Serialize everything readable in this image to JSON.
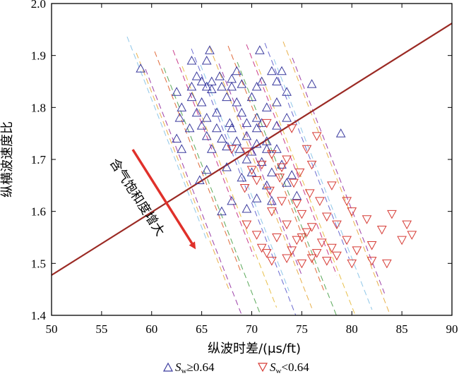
{
  "chart_data": {
    "type": "scatter",
    "xlabel": "纵波时差/(μs/ft)",
    "ylabel": "纵横波速度比",
    "xlim": [
      50,
      90
    ],
    "ylim": [
      1.4,
      2.0
    ],
    "x_ticks": [
      "50",
      "55",
      "60",
      "65",
      "70",
      "75",
      "80",
      "85",
      "90"
    ],
    "y_ticks": [
      "1.4",
      "1.5",
      "1.6",
      "1.7",
      "1.8",
      "1.9",
      "2.0"
    ],
    "grid": false,
    "legend_position": "bottom",
    "annotation": "含气饱和度增大",
    "series": [
      {
        "name": "Sw≥0.64",
        "legend_main": "S",
        "legend_sub": "w",
        "legend_rest": "≥0.64",
        "marker": "triangle-up",
        "color": "#3b3b9e",
        "points": [
          [
            58.9,
            1.875
          ],
          [
            70.8,
            1.91
          ],
          [
            65.8,
            1.91
          ],
          [
            64.0,
            1.89
          ],
          [
            65.5,
            1.89
          ],
          [
            68.5,
            1.87
          ],
          [
            72.0,
            1.87
          ],
          [
            73.0,
            1.87
          ],
          [
            64.5,
            1.86
          ],
          [
            66.8,
            1.86
          ],
          [
            68.0,
            1.855
          ],
          [
            65.0,
            1.85
          ],
          [
            66.0,
            1.85
          ],
          [
            71.0,
            1.85
          ],
          [
            72.5,
            1.85
          ],
          [
            76.0,
            1.845
          ],
          [
            62.5,
            1.83
          ],
          [
            64.0,
            1.84
          ],
          [
            65.5,
            1.84
          ],
          [
            67.0,
            1.84
          ],
          [
            68.0,
            1.84
          ],
          [
            69.0,
            1.845
          ],
          [
            70.5,
            1.84
          ],
          [
            66.0,
            1.835
          ],
          [
            73.5,
            1.83
          ],
          [
            63.0,
            1.8
          ],
          [
            64.0,
            1.82
          ],
          [
            65.0,
            1.81
          ],
          [
            67.5,
            1.82
          ],
          [
            68.5,
            1.81
          ],
          [
            70.0,
            1.82
          ],
          [
            71.5,
            1.8
          ],
          [
            72.5,
            1.81
          ],
          [
            62.8,
            1.78
          ],
          [
            64.5,
            1.79
          ],
          [
            65.5,
            1.78
          ],
          [
            66.5,
            1.79
          ],
          [
            67.8,
            1.77
          ],
          [
            69.0,
            1.79
          ],
          [
            70.5,
            1.78
          ],
          [
            71.0,
            1.77
          ],
          [
            73.5,
            1.78
          ],
          [
            63.8,
            1.76
          ],
          [
            65.0,
            1.765
          ],
          [
            66.5,
            1.76
          ],
          [
            68.0,
            1.76
          ],
          [
            69.5,
            1.77
          ],
          [
            70.5,
            1.76
          ],
          [
            72.5,
            1.765
          ],
          [
            78.9,
            1.75
          ],
          [
            62.5,
            1.74
          ],
          [
            65.5,
            1.745
          ],
          [
            67.0,
            1.74
          ],
          [
            68.5,
            1.735
          ],
          [
            69.5,
            1.745
          ],
          [
            70.5,
            1.73
          ],
          [
            71.5,
            1.735
          ],
          [
            63.0,
            1.72
          ],
          [
            66.0,
            1.72
          ],
          [
            67.5,
            1.725
          ],
          [
            68.8,
            1.72
          ],
          [
            70.0,
            1.715
          ],
          [
            71.5,
            1.72
          ],
          [
            72.5,
            1.72
          ],
          [
            69.5,
            1.7
          ],
          [
            71.0,
            1.695
          ],
          [
            73.0,
            1.69
          ],
          [
            65.5,
            1.68
          ],
          [
            67.5,
            1.685
          ],
          [
            70.0,
            1.675
          ],
          [
            72.0,
            1.675
          ],
          [
            74.0,
            1.67
          ],
          [
            64.8,
            1.66
          ],
          [
            69.0,
            1.665
          ],
          [
            71.5,
            1.65
          ],
          [
            73.5,
            1.655
          ],
          [
            68.0,
            1.62
          ],
          [
            70.5,
            1.625
          ],
          [
            72.0,
            1.62
          ],
          [
            74.5,
            1.63
          ],
          [
            67.0,
            1.6
          ],
          [
            69.5,
            1.605
          ]
        ]
      },
      {
        "name": "Sw<0.64",
        "legend_main": "S",
        "legend_sub": "w",
        "legend_rest": "<0.64",
        "marker": "triangle-down",
        "color": "#d63a34",
        "points": [
          [
            71.5,
            1.77
          ],
          [
            74.0,
            1.76
          ],
          [
            76.5,
            1.745
          ],
          [
            75.5,
            1.72
          ],
          [
            68.0,
            1.72
          ],
          [
            69.5,
            1.715
          ],
          [
            72.0,
            1.71
          ],
          [
            73.5,
            1.7
          ],
          [
            71.0,
            1.69
          ],
          [
            70.0,
            1.68
          ],
          [
            73.0,
            1.685
          ],
          [
            74.8,
            1.675
          ],
          [
            76.0,
            1.69
          ],
          [
            72.8,
            1.665
          ],
          [
            74.2,
            1.655
          ],
          [
            70.5,
            1.66
          ],
          [
            69.3,
            1.645
          ],
          [
            71.8,
            1.64
          ],
          [
            75.8,
            1.635
          ],
          [
            78.0,
            1.65
          ],
          [
            73.0,
            1.62
          ],
          [
            74.5,
            1.615
          ],
          [
            76.8,
            1.62
          ],
          [
            79.5,
            1.62
          ],
          [
            72.0,
            1.6
          ],
          [
            75.0,
            1.595
          ],
          [
            77.5,
            1.59
          ],
          [
            80.0,
            1.6
          ],
          [
            81.5,
            1.585
          ],
          [
            69.5,
            1.575
          ],
          [
            73.5,
            1.575
          ],
          [
            76.0,
            1.57
          ],
          [
            78.5,
            1.575
          ],
          [
            84.0,
            1.595
          ],
          [
            85.5,
            1.575
          ],
          [
            86.0,
            1.555
          ],
          [
            83.0,
            1.565
          ],
          [
            70.5,
            1.555
          ],
          [
            72.5,
            1.55
          ],
          [
            75.0,
            1.55
          ],
          [
            77.0,
            1.54
          ],
          [
            79.5,
            1.545
          ],
          [
            82.0,
            1.535
          ],
          [
            85.0,
            1.545
          ],
          [
            71.0,
            1.53
          ],
          [
            74.0,
            1.525
          ],
          [
            76.5,
            1.52
          ],
          [
            78.5,
            1.515
          ],
          [
            80.5,
            1.525
          ],
          [
            72.0,
            1.505
          ],
          [
            75.0,
            1.5
          ],
          [
            77.5,
            1.505
          ],
          [
            80.0,
            1.5
          ],
          [
            82.0,
            1.505
          ],
          [
            83.5,
            1.5
          ],
          [
            71.5,
            1.52
          ],
          [
            73.5,
            1.51
          ],
          [
            76.0,
            1.51
          ],
          [
            78.0,
            1.53
          ],
          [
            74.5,
            1.545
          ],
          [
            75.5,
            1.56
          ]
        ]
      }
    ]
  }
}
